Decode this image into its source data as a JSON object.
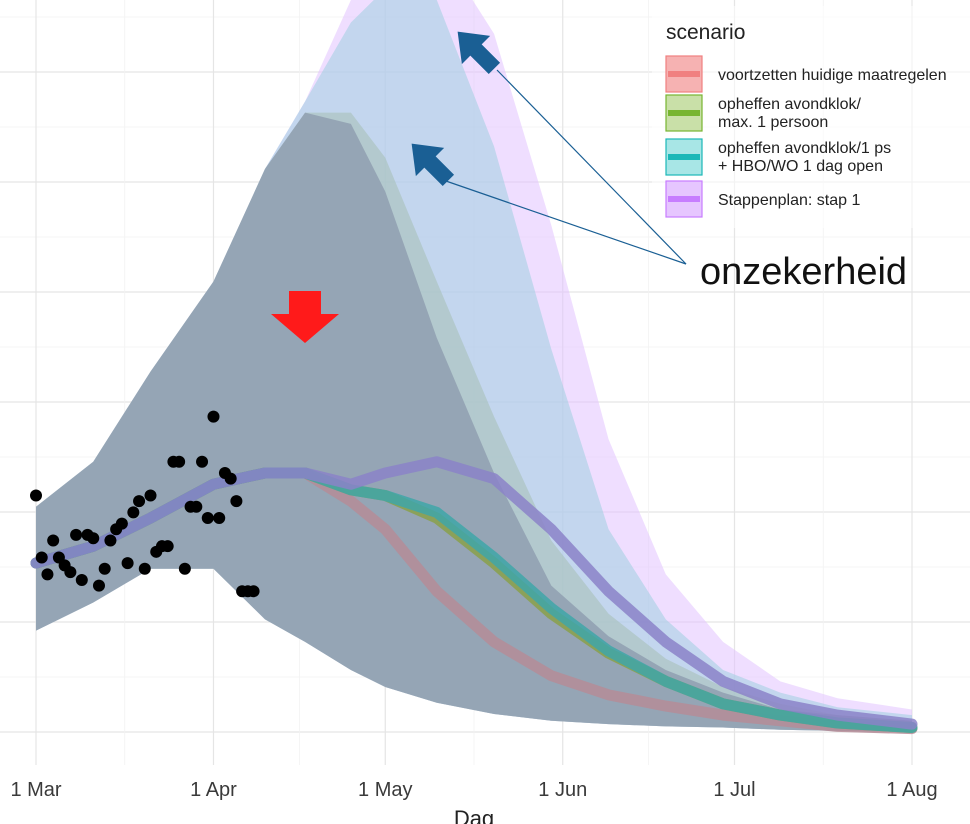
{
  "chart_data": {
    "type": "area",
    "xlabel": "Dag",
    "ylabel": "",
    "x_ticks": [
      "1 Mar",
      "1 Apr",
      "1 May",
      "1 Jun",
      "1 Jul",
      "1 Aug"
    ],
    "x_tick_days": [
      0,
      31,
      61,
      92,
      122,
      153
    ],
    "ylim": [
      0,
      6.5
    ],
    "grid": true,
    "legend_title": "scenario",
    "legend_position": "top-right",
    "annotation": "onzekerheid",
    "series": [
      {
        "name": "voortzetten huidige maatregelen",
        "color": "#f08080",
        "x": [
          0,
          10,
          20,
          31,
          40,
          47,
          55,
          61,
          70,
          80,
          90,
          100,
          110,
          120,
          130,
          140,
          153
        ],
        "mean": [
          1.5,
          1.65,
          1.9,
          2.2,
          2.3,
          2.3,
          2.05,
          1.8,
          1.25,
          0.8,
          0.5,
          0.33,
          0.23,
          0.15,
          0.1,
          0.05,
          0.03
        ],
        "lower": [
          0.9,
          1.15,
          1.45,
          1.45,
          1.0,
          0.8,
          0.55,
          0.4,
          0.26,
          0.16,
          0.1,
          0.07,
          0.05,
          0.04,
          0.02,
          0.01,
          0.0
        ],
        "upper": [
          2.0,
          2.4,
          3.2,
          4.0,
          5.0,
          5.5,
          5.4,
          4.8,
          3.5,
          2.3,
          1.3,
          0.85,
          0.55,
          0.35,
          0.2,
          0.15,
          0.1
        ]
      },
      {
        "name": "opheffen avondklok/ max. 1 persoon",
        "color": "#77b531",
        "x": [
          0,
          10,
          20,
          31,
          40,
          47,
          55,
          61,
          70,
          80,
          90,
          100,
          110,
          120,
          130,
          140,
          153
        ],
        "mean": [
          1.5,
          1.65,
          1.9,
          2.2,
          2.3,
          2.3,
          2.15,
          2.1,
          1.9,
          1.5,
          1.05,
          0.7,
          0.45,
          0.25,
          0.15,
          0.08,
          0.04
        ],
        "lower": [
          0.9,
          1.15,
          1.45,
          1.45,
          1.0,
          0.8,
          0.55,
          0.4,
          0.26,
          0.16,
          0.1,
          0.07,
          0.05,
          0.04,
          0.02,
          0.01,
          0.0
        ],
        "upper": [
          2.0,
          2.4,
          3.2,
          4.0,
          5.0,
          5.5,
          5.5,
          5.1,
          4.0,
          2.8,
          1.7,
          1.05,
          0.65,
          0.4,
          0.25,
          0.15,
          0.1
        ]
      },
      {
        "name": "opheffen avondklok/1 ps + HBO/WO 1 dag open",
        "color": "#1bb8b8",
        "x": [
          0,
          10,
          20,
          31,
          40,
          47,
          55,
          61,
          70,
          80,
          90,
          100,
          110,
          120,
          130,
          140,
          153
        ],
        "mean": [
          1.5,
          1.65,
          1.9,
          2.2,
          2.3,
          2.3,
          2.15,
          2.1,
          1.95,
          1.55,
          1.1,
          0.72,
          0.45,
          0.25,
          0.15,
          0.08,
          0.04
        ],
        "lower": [
          0.9,
          1.15,
          1.45,
          1.45,
          1.0,
          0.8,
          0.55,
          0.4,
          0.26,
          0.16,
          0.1,
          0.07,
          0.05,
          0.04,
          0.02,
          0.01,
          0.0
        ],
        "upper": [
          2.0,
          2.4,
          3.2,
          4.0,
          5.0,
          5.6,
          6.3,
          6.6,
          6.5,
          5.2,
          3.4,
          1.8,
          1.0,
          0.55,
          0.35,
          0.22,
          0.15
        ]
      },
      {
        "name": "Stappenplan: stap 1",
        "color": "#c77dff",
        "x": [
          0,
          10,
          20,
          31,
          40,
          47,
          55,
          61,
          70,
          80,
          90,
          100,
          110,
          120,
          130,
          140,
          153
        ],
        "mean": [
          1.5,
          1.65,
          1.9,
          2.2,
          2.3,
          2.3,
          2.2,
          2.3,
          2.4,
          2.25,
          1.8,
          1.25,
          0.8,
          0.45,
          0.25,
          0.15,
          0.07
        ],
        "lower": [
          0.9,
          1.15,
          1.45,
          1.45,
          1.0,
          0.8,
          0.55,
          0.4,
          0.26,
          0.16,
          0.1,
          0.07,
          0.05,
          0.04,
          0.02,
          0.01,
          0.0
        ],
        "upper": [
          2.0,
          2.4,
          3.2,
          4.0,
          5.0,
          5.6,
          6.5,
          7.0,
          7.0,
          6.2,
          4.5,
          2.6,
          1.4,
          0.8,
          0.45,
          0.3,
          0.2
        ]
      }
    ],
    "observed": {
      "x": [
        0,
        1,
        2,
        3,
        4,
        5,
        6,
        7,
        8,
        9,
        10,
        11,
        12,
        13,
        14,
        15,
        16,
        17,
        18,
        19,
        20,
        21,
        22,
        23,
        24,
        25,
        26,
        27,
        28,
        29,
        30,
        31,
        32,
        33,
        34,
        35,
        36,
        37,
        38
      ],
      "y": [
        2.1,
        1.55,
        1.4,
        1.7,
        1.55,
        1.48,
        1.42,
        1.75,
        1.35,
        1.75,
        1.72,
        1.3,
        1.45,
        1.7,
        1.8,
        1.85,
        1.5,
        1.95,
        2.05,
        1.45,
        2.1,
        1.6,
        1.65,
        1.65,
        2.4,
        2.4,
        1.45,
        2.0,
        2.0,
        2.4,
        1.9,
        2.8,
        1.9,
        2.3,
        2.25,
        2.05,
        1.25,
        1.25,
        1.25
      ]
    }
  }
}
